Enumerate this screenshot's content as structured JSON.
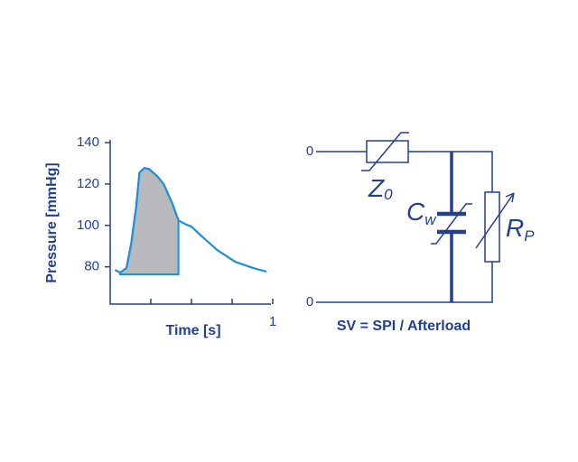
{
  "chart_data": {
    "type": "line",
    "y_label": "Pressure [mmHg]",
    "x_label": "Time [s]",
    "xlim": [
      0,
      1
    ],
    "ylim": [
      62,
      140
    ],
    "xticks": [
      {
        "value": 0.25,
        "label": null
      },
      {
        "value": 0.5,
        "label": null
      },
      {
        "value": 0.75,
        "label": null
      },
      1
    ],
    "yticks": [
      80,
      100,
      120,
      140
    ],
    "x": [
      0.03,
      0.06,
      0.1,
      0.13,
      0.16,
      0.18,
      0.21,
      0.24,
      0.29,
      0.33,
      0.38,
      0.42,
      0.46,
      0.5,
      0.56,
      0.66,
      0.77,
      0.88,
      0.96
    ],
    "values": [
      78.5,
      77.2,
      79.4,
      91.6,
      109,
      125.5,
      127.7,
      127.2,
      123.7,
      119.8,
      111,
      102.4,
      100.7,
      99.4,
      95,
      88,
      82.4,
      79.4,
      77.7
    ],
    "color": "#1e8fd6",
    "shaded_area": {
      "xlim": [
        0.06,
        0.42
      ],
      "base": 76.3,
      "color": "#b8b9bd"
    }
  },
  "circuit": {
    "terminals": [
      "0",
      "0"
    ],
    "z0": {
      "main": "Z",
      "sub": "0"
    },
    "cw": {
      "main": "C",
      "sub": "w"
    },
    "rp": {
      "main": "R",
      "sub": "P"
    },
    "formula": "SV = SPI / Afterload"
  }
}
